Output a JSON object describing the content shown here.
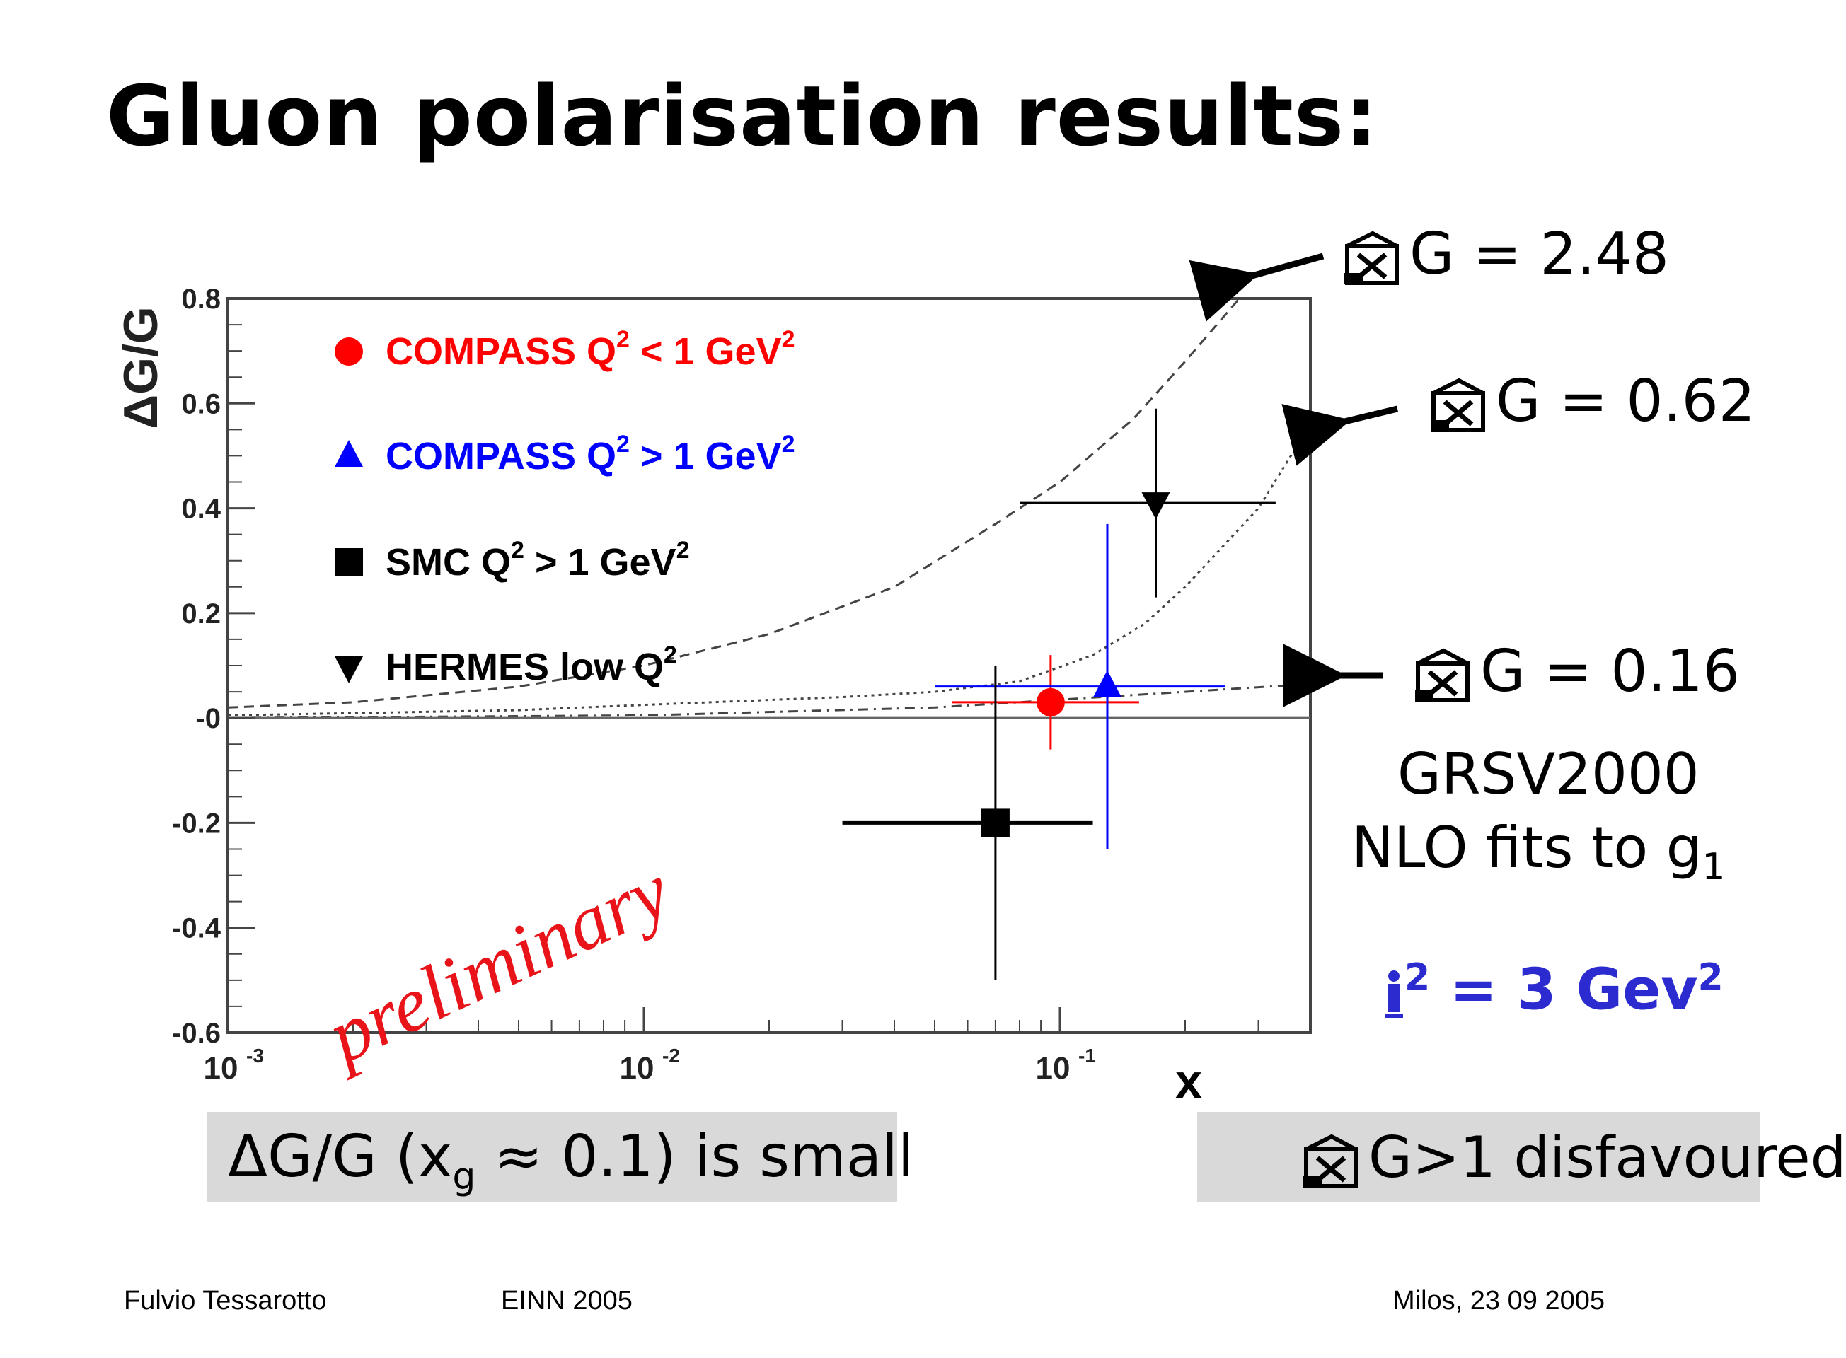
{
  "slide": {
    "title": "Gluon polarisation results:",
    "footer_left": "Fulvio Tessarotto",
    "footer_center": "EINN 2005",
    "footer_right": "Milos,   23 09 2005"
  },
  "annotations": {
    "curve_high": "G = 2.48",
    "curve_mid": "G = 0.62",
    "curve_low": "G = 0.16",
    "fit_line1": "GRSV2000",
    "fit_line2": "NLO fits to g",
    "fit_sub": "1",
    "scale_text": "2",
    "scale_rest": " =  3 Gev",
    "scale_sup": "2",
    "box_left_text": "ΔG/G (x",
    "box_left_sub": "g",
    "box_left_rest": " ≈ 0.1) is small",
    "box_right_text": "G>1 disfavoured",
    "symbol_icon": "broken-image-icon"
  },
  "colors": {
    "compass_low": "#ff0000",
    "compass_high": "#0000ff",
    "smc": "#000000",
    "hermes": "#000000",
    "scale_text": "#2b2bd0",
    "preliminary": "#e8141a"
  },
  "chart_data": {
    "type": "scatter",
    "x_scale": "log",
    "xlim": [
      0.001,
      0.4
    ],
    "ylim": [
      -0.6,
      0.8
    ],
    "xlabel": "x",
    "ylabel": "ΔG/G",
    "x_ticks": [
      {
        "value": 0.001,
        "base": "10",
        "exp": "-3"
      },
      {
        "value": 0.01,
        "base": "10",
        "exp": "-2"
      },
      {
        "value": 0.1,
        "base": "10",
        "exp": "-1"
      }
    ],
    "y_ticks": [
      "0.8",
      "0.6",
      "0.4",
      "0.2",
      "-0",
      "-0.2",
      "-0.4",
      "-0.6"
    ],
    "y_tick_values": [
      0.8,
      0.6,
      0.4,
      0.2,
      0,
      -0.2,
      -0.4,
      -0.6
    ],
    "watermark": "preliminary",
    "legend": [
      {
        "name": "COMPASS Q",
        "sup": "2",
        "rest": " < 1 GeV",
        "sup2": "2",
        "marker": "circle",
        "color": "#ff0000"
      },
      {
        "name": "COMPASS Q",
        "sup": "2",
        "rest": " > 1 GeV",
        "sup2": "2",
        "marker": "triangle-up",
        "color": "#0000ff"
      },
      {
        "name": "SMC Q",
        "sup": "2",
        "rest": " > 1 GeV",
        "sup2": "2",
        "marker": "square",
        "color": "#000000"
      },
      {
        "name": "HERMES low Q",
        "sup": "2",
        "rest": "",
        "sup2": "",
        "marker": "triangle-down",
        "color": "#000000"
      }
    ],
    "series": [
      {
        "name": "COMPASS Q2 < 1 GeV2",
        "marker": "circle",
        "color": "#ff0000",
        "points": [
          {
            "x": 0.095,
            "y": 0.03,
            "xlo": 0.055,
            "xhi": 0.155,
            "ylo": -0.06,
            "yhi": 0.12
          }
        ]
      },
      {
        "name": "COMPASS Q2 > 1 GeV2",
        "marker": "triangle-up",
        "color": "#0000ff",
        "points": [
          {
            "x": 0.13,
            "y": 0.06,
            "xlo": 0.05,
            "xhi": 0.25,
            "ylo": -0.25,
            "yhi": 0.37
          }
        ]
      },
      {
        "name": "SMC Q2 > 1 GeV2",
        "marker": "square",
        "color": "#000000",
        "points": [
          {
            "x": 0.07,
            "y": -0.2,
            "xlo": 0.03,
            "xhi": 0.12,
            "ylo": -0.5,
            "yhi": 0.1
          }
        ]
      },
      {
        "name": "HERMES low Q2",
        "marker": "triangle-down",
        "color": "#000000",
        "points": [
          {
            "x": 0.17,
            "y": 0.41,
            "xlo": 0.08,
            "xhi": 0.33,
            "ylo": 0.23,
            "yhi": 0.59
          }
        ]
      }
    ],
    "curves": [
      {
        "name": "G = 2.48",
        "style": "dashed",
        "points": [
          [
            0.001,
            0.02
          ],
          [
            0.002,
            0.03
          ],
          [
            0.005,
            0.06
          ],
          [
            0.01,
            0.1
          ],
          [
            0.02,
            0.16
          ],
          [
            0.04,
            0.25
          ],
          [
            0.07,
            0.37
          ],
          [
            0.1,
            0.45
          ],
          [
            0.15,
            0.57
          ],
          [
            0.2,
            0.68
          ],
          [
            0.27,
            0.8
          ]
        ]
      },
      {
        "name": "G = 0.62",
        "style": "dotted",
        "points": [
          [
            0.001,
            0.005
          ],
          [
            0.005,
            0.015
          ],
          [
            0.01,
            0.025
          ],
          [
            0.03,
            0.04
          ],
          [
            0.05,
            0.05
          ],
          [
            0.08,
            0.07
          ],
          [
            0.12,
            0.12
          ],
          [
            0.16,
            0.18
          ],
          [
            0.2,
            0.25
          ],
          [
            0.3,
            0.4
          ],
          [
            0.4,
            0.56
          ]
        ]
      },
      {
        "name": "G = 0.16",
        "style": "dashdot",
        "points": [
          [
            0.001,
            0.0
          ],
          [
            0.01,
            0.005
          ],
          [
            0.05,
            0.02
          ],
          [
            0.1,
            0.035
          ],
          [
            0.2,
            0.05
          ],
          [
            0.4,
            0.065
          ]
        ]
      }
    ],
    "grid": false,
    "legend_position": "top-left"
  }
}
